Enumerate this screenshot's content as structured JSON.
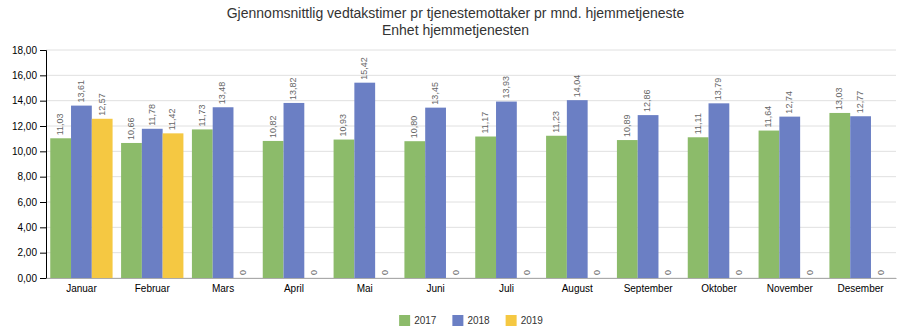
{
  "chart_data": {
    "type": "bar",
    "title": "Gjennomsnittlig vedtakstimer pr tjenestemottaker pr mnd. hjemmetjeneste\nEnhet hjemmetjenesten",
    "categories": [
      "Januar",
      "Februar",
      "Mars",
      "April",
      "Mai",
      "Juni",
      "Juli",
      "August",
      "September",
      "Oktober",
      "November",
      "Desember"
    ],
    "series": [
      {
        "name": "2017",
        "color": "#8CBB6A",
        "values": [
          11.03,
          10.66,
          11.73,
          10.82,
          10.93,
          10.8,
          11.17,
          11.23,
          10.89,
          11.11,
          11.64,
          13.03
        ],
        "value_labels": [
          "11,03",
          "10,66",
          "11,73",
          "10,82",
          "10,93",
          "10,80",
          "11,17",
          "11,23",
          "10,89",
          "11,11",
          "11,64",
          "13,03"
        ]
      },
      {
        "name": "2018",
        "color": "#6B7FC4",
        "values": [
          13.61,
          11.78,
          13.48,
          13.82,
          15.42,
          13.45,
          13.93,
          14.04,
          12.86,
          13.79,
          12.74,
          12.77
        ],
        "value_labels": [
          "13,61",
          "11,78",
          "13,48",
          "13,82",
          "15,42",
          "13,45",
          "13,93",
          "14,04",
          "12,86",
          "13,79",
          "12,74",
          "12,77"
        ]
      },
      {
        "name": "2019",
        "color": "#F5C842",
        "values": [
          12.57,
          11.42,
          0,
          0,
          0,
          0,
          0,
          0,
          0,
          0,
          0,
          0
        ],
        "value_labels": [
          "12,57",
          "11,42",
          "0",
          "0",
          "0",
          "0",
          "0",
          "0",
          "0",
          "0",
          "0",
          "0"
        ]
      }
    ],
    "ylim": [
      0,
      18
    ],
    "yticks": [
      {
        "value": 0,
        "label": "0,00"
      },
      {
        "value": 2,
        "label": "2,00"
      },
      {
        "value": 4,
        "label": "4,00"
      },
      {
        "value": 6,
        "label": "6,00"
      },
      {
        "value": 8,
        "label": "8,00"
      },
      {
        "value": 10,
        "label": "10,00"
      },
      {
        "value": 12,
        "label": "12,00"
      },
      {
        "value": 14,
        "label": "14,00"
      },
      {
        "value": 16,
        "label": "16,00"
      },
      {
        "value": 18,
        "label": "18,00"
      }
    ],
    "grid": true,
    "legend": "bottom",
    "data_labels": true
  }
}
